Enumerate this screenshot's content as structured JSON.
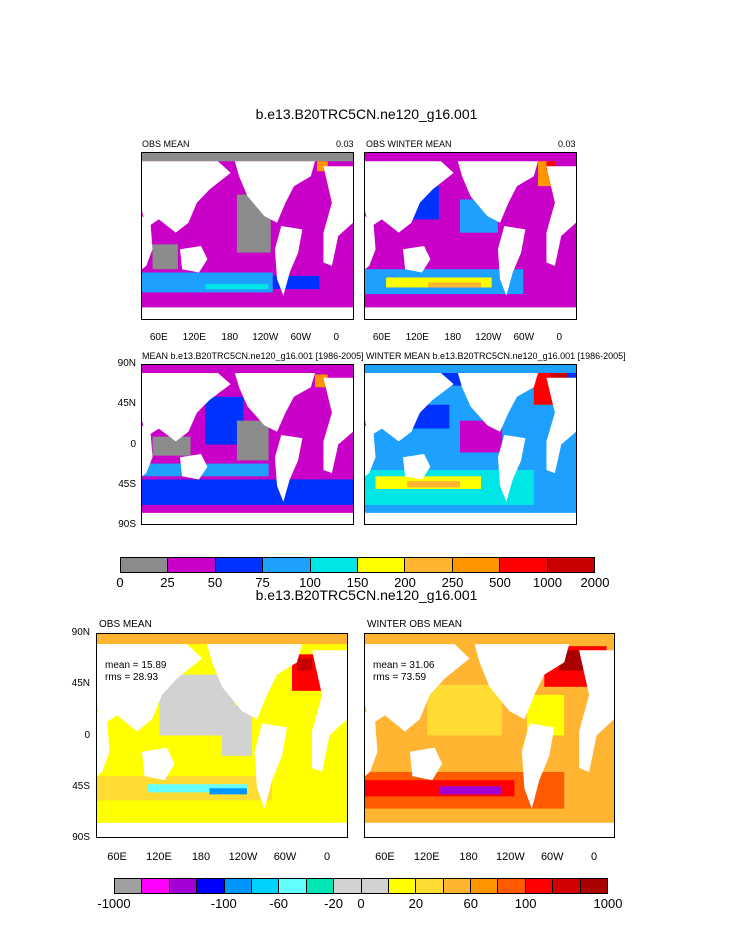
{
  "page": {
    "background": "#ffffff"
  },
  "section1": {
    "title": "b.e13.B20TRC5CN.ne120_g16.001",
    "panels": [
      {
        "id": "p1",
        "title": "OBS MEAN",
        "right": "0.03",
        "xticks": [
          "60E",
          "120E",
          "180",
          "120W",
          "60W",
          "0"
        ],
        "yticks": []
      },
      {
        "id": "p2",
        "title": "OBS WINTER MEAN",
        "right": "0.03",
        "xticks": [
          "60E",
          "120E",
          "180",
          "120W",
          "60W",
          "0"
        ],
        "yticks": []
      },
      {
        "id": "p3",
        "title": "MEAN b.e13.B20TRC5CN.ne120_g16.001 [1986-2005]",
        "right": "",
        "xticks": [],
        "yticks": [
          "90N",
          "45N",
          "0",
          "45S",
          "90S"
        ]
      },
      {
        "id": "p4",
        "title": "WINTER MEAN b.e13.B20TRC5CN.ne120_g16.001 [1986-2005]",
        "right": "",
        "xticks": [],
        "yticks": []
      }
    ],
    "colorbar": {
      "colors": [
        "#8c8c8c",
        "#c800c8",
        "#0032ff",
        "#1ea0ff",
        "#00e6e6",
        "#ffff00",
        "#ffb432",
        "#ff9600",
        "#ff0000",
        "#c80000"
      ],
      "labels": [
        "0",
        "25",
        "50",
        "75",
        "100",
        "150",
        "200",
        "250",
        "500",
        "1000",
        "2000"
      ]
    }
  },
  "section2": {
    "title": "b.e13.B20TRC5CN.ne120_g16.001",
    "panels": [
      {
        "id": "p5",
        "title": "OBS MEAN",
        "stats": [
          "mean = 15.89",
          "rms = 28.93"
        ],
        "xticks": [
          "60E",
          "120E",
          "180",
          "120W",
          "60W",
          "0"
        ],
        "yticks": [
          "90N",
          "45N",
          "0",
          "45S",
          "90S"
        ]
      },
      {
        "id": "p6",
        "title": "WINTER OBS MEAN",
        "stats": [
          "mean = 31.06",
          "rms = 73.59"
        ],
        "xticks": [
          "60E",
          "120E",
          "180",
          "120W",
          "60W",
          "0"
        ],
        "yticks": []
      }
    ],
    "colorbar": {
      "colors": [
        "#a0a0a0",
        "#ff00ff",
        "#a000d2",
        "#0000ff",
        "#0096ff",
        "#00d2ff",
        "#64ffff",
        "#00e6b4",
        "#d2d2d2",
        "#d2d2d2",
        "#ffff00",
        "#ffdc32",
        "#ffb432",
        "#ff9600",
        "#ff5a00",
        "#ff0000",
        "#d20000",
        "#aa0000"
      ],
      "labels": [
        "-1000",
        "-100",
        "-60",
        "-20",
        "0",
        "20",
        "60",
        "100",
        "1000"
      ]
    }
  },
  "chart_data": [
    {
      "type": "heatmap",
      "title": "OBS MEAN",
      "suptitle": "b.e13.B20TRC5CN.ne120_g16.001",
      "corner_label": "0.03",
      "xticks": [
        "60E",
        "120E",
        "180",
        "120W",
        "60W",
        "0"
      ],
      "levels": [
        0,
        25,
        50,
        75,
        100,
        150,
        200,
        250,
        500,
        1000,
        2000
      ],
      "dominant": [
        "magenta",
        "gray",
        "blue"
      ]
    },
    {
      "type": "heatmap",
      "title": "OBS WINTER MEAN",
      "corner_label": "0.03",
      "xticks": [
        "60E",
        "120E",
        "180",
        "120W",
        "60W",
        "0"
      ],
      "levels": [
        0,
        25,
        50,
        75,
        100,
        150,
        200,
        250,
        500,
        1000,
        2000
      ],
      "dominant": [
        "magenta",
        "blue",
        "cyan",
        "yellow",
        "orange"
      ]
    },
    {
      "type": "heatmap",
      "title": "MEAN b.e13.B20TRC5CN.ne120_g16.001 [1986-2005]",
      "yticks": [
        "90N",
        "45N",
        "0",
        "45S",
        "90S"
      ],
      "levels": [
        0,
        25,
        50,
        75,
        100,
        150,
        200,
        250,
        500,
        1000,
        2000
      ],
      "dominant": [
        "magenta",
        "gray",
        "blue"
      ]
    },
    {
      "type": "heatmap",
      "title": "WINTER MEAN b.e13.B20TRC5CN.ne120_g16.001 [1986-2005]",
      "levels": [
        0,
        25,
        50,
        75,
        100,
        150,
        200,
        250,
        500,
        1000,
        2000
      ],
      "dominant": [
        "cyan",
        "blue",
        "yellow",
        "orange",
        "red"
      ]
    },
    {
      "type": "heatmap",
      "title": "OBS MEAN",
      "suptitle": "b.e13.B20TRC5CN.ne120_g16.001",
      "mean": 15.89,
      "rms": 28.93,
      "xticks": [
        "60E",
        "120E",
        "180",
        "120W",
        "60W",
        "0"
      ],
      "yticks": [
        "90N",
        "45N",
        "0",
        "45S",
        "90S"
      ],
      "levels": [
        -1000,
        -100,
        -60,
        -20,
        0,
        20,
        60,
        100,
        1000
      ],
      "dominant": [
        "yellow",
        "gray",
        "orange"
      ]
    },
    {
      "type": "heatmap",
      "title": "WINTER OBS MEAN",
      "mean": 31.06,
      "rms": 73.59,
      "xticks": [
        "60E",
        "120E",
        "180",
        "120W",
        "60W",
        "0"
      ],
      "levels": [
        -1000,
        -100,
        -60,
        -20,
        0,
        20,
        60,
        100,
        1000
      ],
      "dominant": [
        "orange",
        "red",
        "yellow"
      ]
    }
  ]
}
